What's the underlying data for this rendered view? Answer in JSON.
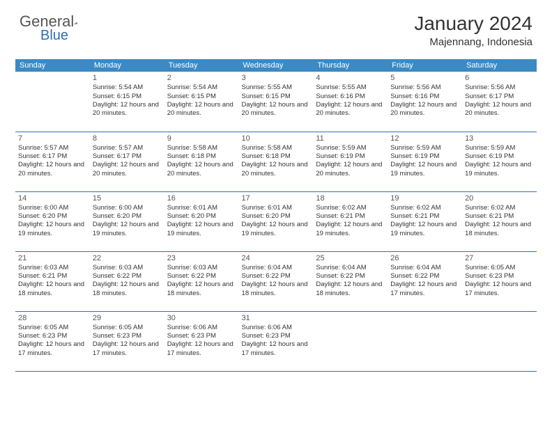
{
  "logo": {
    "text1": "General",
    "text2": "Blue"
  },
  "title": "January 2024",
  "location": "Majennang, Indonesia",
  "colors": {
    "header_bg": "#3b8ac4",
    "header_text": "#ffffff",
    "divider": "#2d6fb5",
    "logo_gray": "#555555",
    "logo_blue": "#2d6fb5",
    "text": "#333333",
    "background": "#ffffff"
  },
  "weekdays": [
    "Sunday",
    "Monday",
    "Tuesday",
    "Wednesday",
    "Thursday",
    "Friday",
    "Saturday"
  ],
  "days": [
    {
      "n": 1,
      "sr": "5:54 AM",
      "ss": "6:15 PM",
      "dl": "12 hours and 20 minutes."
    },
    {
      "n": 2,
      "sr": "5:54 AM",
      "ss": "6:15 PM",
      "dl": "12 hours and 20 minutes."
    },
    {
      "n": 3,
      "sr": "5:55 AM",
      "ss": "6:15 PM",
      "dl": "12 hours and 20 minutes."
    },
    {
      "n": 4,
      "sr": "5:55 AM",
      "ss": "6:16 PM",
      "dl": "12 hours and 20 minutes."
    },
    {
      "n": 5,
      "sr": "5:56 AM",
      "ss": "6:16 PM",
      "dl": "12 hours and 20 minutes."
    },
    {
      "n": 6,
      "sr": "5:56 AM",
      "ss": "6:17 PM",
      "dl": "12 hours and 20 minutes."
    },
    {
      "n": 7,
      "sr": "5:57 AM",
      "ss": "6:17 PM",
      "dl": "12 hours and 20 minutes."
    },
    {
      "n": 8,
      "sr": "5:57 AM",
      "ss": "6:17 PM",
      "dl": "12 hours and 20 minutes."
    },
    {
      "n": 9,
      "sr": "5:58 AM",
      "ss": "6:18 PM",
      "dl": "12 hours and 20 minutes."
    },
    {
      "n": 10,
      "sr": "5:58 AM",
      "ss": "6:18 PM",
      "dl": "12 hours and 20 minutes."
    },
    {
      "n": 11,
      "sr": "5:59 AM",
      "ss": "6:19 PM",
      "dl": "12 hours and 20 minutes."
    },
    {
      "n": 12,
      "sr": "5:59 AM",
      "ss": "6:19 PM",
      "dl": "12 hours and 19 minutes."
    },
    {
      "n": 13,
      "sr": "5:59 AM",
      "ss": "6:19 PM",
      "dl": "12 hours and 19 minutes."
    },
    {
      "n": 14,
      "sr": "6:00 AM",
      "ss": "6:20 PM",
      "dl": "12 hours and 19 minutes."
    },
    {
      "n": 15,
      "sr": "6:00 AM",
      "ss": "6:20 PM",
      "dl": "12 hours and 19 minutes."
    },
    {
      "n": 16,
      "sr": "6:01 AM",
      "ss": "6:20 PM",
      "dl": "12 hours and 19 minutes."
    },
    {
      "n": 17,
      "sr": "6:01 AM",
      "ss": "6:20 PM",
      "dl": "12 hours and 19 minutes."
    },
    {
      "n": 18,
      "sr": "6:02 AM",
      "ss": "6:21 PM",
      "dl": "12 hours and 19 minutes."
    },
    {
      "n": 19,
      "sr": "6:02 AM",
      "ss": "6:21 PM",
      "dl": "12 hours and 19 minutes."
    },
    {
      "n": 20,
      "sr": "6:02 AM",
      "ss": "6:21 PM",
      "dl": "12 hours and 18 minutes."
    },
    {
      "n": 21,
      "sr": "6:03 AM",
      "ss": "6:21 PM",
      "dl": "12 hours and 18 minutes."
    },
    {
      "n": 22,
      "sr": "6:03 AM",
      "ss": "6:22 PM",
      "dl": "12 hours and 18 minutes."
    },
    {
      "n": 23,
      "sr": "6:03 AM",
      "ss": "6:22 PM",
      "dl": "12 hours and 18 minutes."
    },
    {
      "n": 24,
      "sr": "6:04 AM",
      "ss": "6:22 PM",
      "dl": "12 hours and 18 minutes."
    },
    {
      "n": 25,
      "sr": "6:04 AM",
      "ss": "6:22 PM",
      "dl": "12 hours and 18 minutes."
    },
    {
      "n": 26,
      "sr": "6:04 AM",
      "ss": "6:22 PM",
      "dl": "12 hours and 17 minutes."
    },
    {
      "n": 27,
      "sr": "6:05 AM",
      "ss": "6:23 PM",
      "dl": "12 hours and 17 minutes."
    },
    {
      "n": 28,
      "sr": "6:05 AM",
      "ss": "6:23 PM",
      "dl": "12 hours and 17 minutes."
    },
    {
      "n": 29,
      "sr": "6:05 AM",
      "ss": "6:23 PM",
      "dl": "12 hours and 17 minutes."
    },
    {
      "n": 30,
      "sr": "6:06 AM",
      "ss": "6:23 PM",
      "dl": "12 hours and 17 minutes."
    },
    {
      "n": 31,
      "sr": "6:06 AM",
      "ss": "6:23 PM",
      "dl": "12 hours and 17 minutes."
    }
  ],
  "labels": {
    "sunrise": "Sunrise:",
    "sunset": "Sunset:",
    "daylight": "Daylight:"
  },
  "start_weekday": 1
}
